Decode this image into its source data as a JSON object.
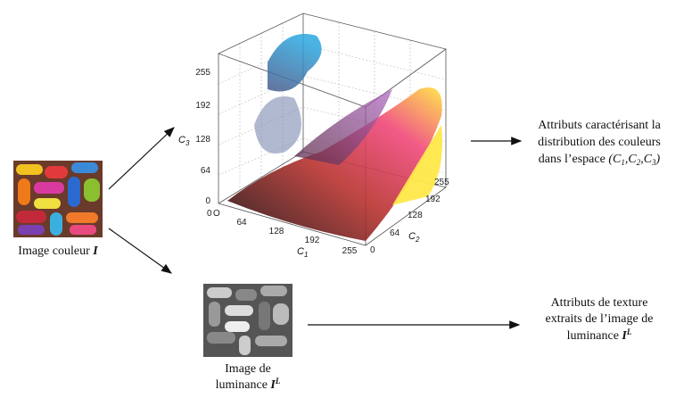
{
  "input": {
    "label": "Image couleur",
    "symbol": "I"
  },
  "plot": {
    "c3": {
      "letter": "C",
      "sub": "3",
      "ticks": [
        "0",
        "64",
        "128",
        "192",
        "255"
      ]
    },
    "c1": {
      "letter": "C",
      "sub": "1",
      "ticks": [
        "0",
        "64",
        "128",
        "192",
        "255"
      ]
    },
    "c2": {
      "letter": "C",
      "sub": "2",
      "ticks": [
        "0",
        "64",
        "128",
        "192",
        "255"
      ]
    },
    "origin": "O"
  },
  "color_output": {
    "lines": [
      "Attributs caractérisant la",
      "distribution des couleurs",
      "dans l’espace"
    ],
    "formula": {
      "open": "(",
      "sep": ",",
      "close": ")",
      "terms": [
        {
          "letter": "C",
          "sub": "1"
        },
        {
          "letter": "C",
          "sub": "2"
        },
        {
          "letter": "C",
          "sub": "3"
        }
      ]
    }
  },
  "luminance": {
    "lines": [
      "Image de",
      "luminance"
    ],
    "symbol": "I",
    "sup": "L"
  },
  "texture_output": {
    "lines": [
      "Attributs de texture",
      "extraits de l’image de",
      "luminance"
    ],
    "symbol": "I",
    "sup": "L"
  }
}
